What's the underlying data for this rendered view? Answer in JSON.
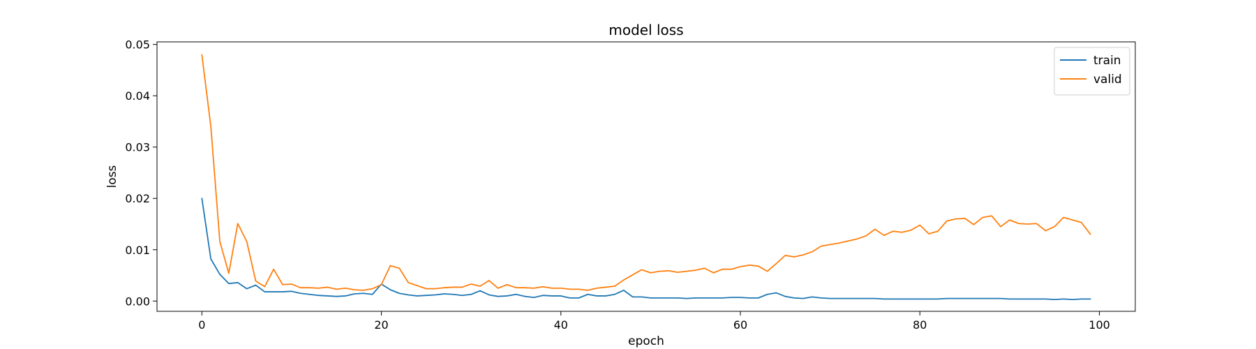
{
  "chart_data": {
    "type": "line",
    "title": "model loss",
    "xlabel": "epoch",
    "ylabel": "loss",
    "xlim": [
      -5,
      104
    ],
    "ylim": [
      -0.002,
      0.0505
    ],
    "xticks": [
      0,
      20,
      40,
      60,
      80,
      100
    ],
    "xtick_labels": [
      "0",
      "20",
      "40",
      "60",
      "80",
      "100"
    ],
    "yticks": [
      0.0,
      0.01,
      0.02,
      0.03,
      0.04,
      0.05
    ],
    "ytick_labels": [
      "0.00",
      "0.01",
      "0.02",
      "0.03",
      "0.04",
      "0.05"
    ],
    "grid": false,
    "legend_position": "top-right",
    "series": [
      {
        "name": "train",
        "color": "#1f77b4",
        "x": [
          0,
          1,
          2,
          3,
          4,
          5,
          6,
          7,
          8,
          9,
          10,
          11,
          12,
          13,
          14,
          15,
          16,
          17,
          18,
          19,
          20,
          21,
          22,
          23,
          24,
          25,
          26,
          27,
          28,
          29,
          30,
          31,
          32,
          33,
          34,
          35,
          36,
          37,
          38,
          39,
          40,
          41,
          42,
          43,
          44,
          45,
          46,
          47,
          48,
          49,
          50,
          51,
          52,
          53,
          54,
          55,
          56,
          57,
          58,
          59,
          60,
          61,
          62,
          63,
          64,
          65,
          66,
          67,
          68,
          69,
          70,
          71,
          72,
          73,
          74,
          75,
          76,
          77,
          78,
          79,
          80,
          81,
          82,
          83,
          84,
          85,
          86,
          87,
          88,
          89,
          90,
          91,
          92,
          93,
          94,
          95,
          96,
          97,
          98,
          99
        ],
        "values": [
          0.02,
          0.0082,
          0.0052,
          0.0034,
          0.0036,
          0.0024,
          0.0031,
          0.0018,
          0.0018,
          0.0018,
          0.0019,
          0.0015,
          0.0013,
          0.0011,
          0.001,
          0.0009,
          0.001,
          0.0014,
          0.0015,
          0.0013,
          0.0033,
          0.0022,
          0.0015,
          0.0012,
          0.001,
          0.0011,
          0.0012,
          0.0014,
          0.0013,
          0.0011,
          0.0013,
          0.002,
          0.0012,
          0.0009,
          0.001,
          0.0013,
          0.0009,
          0.0007,
          0.0011,
          0.001,
          0.001,
          0.0006,
          0.0006,
          0.0013,
          0.001,
          0.001,
          0.0013,
          0.0021,
          0.0008,
          0.0008,
          0.0006,
          0.0006,
          0.0006,
          0.0006,
          0.0005,
          0.0006,
          0.0006,
          0.0006,
          0.0006,
          0.0007,
          0.0007,
          0.0006,
          0.0006,
          0.0013,
          0.0016,
          0.0009,
          0.0006,
          0.0005,
          0.0008,
          0.0006,
          0.0005,
          0.0005,
          0.0005,
          0.0005,
          0.0005,
          0.0005,
          0.0004,
          0.0004,
          0.0004,
          0.0004,
          0.0004,
          0.0004,
          0.0004,
          0.0005,
          0.0005,
          0.0005,
          0.0005,
          0.0005,
          0.0005,
          0.0005,
          0.0004,
          0.0004,
          0.0004,
          0.0004,
          0.0004,
          0.0003,
          0.0004,
          0.0003,
          0.0004,
          0.0004
        ]
      },
      {
        "name": "valid",
        "color": "#ff7f0e",
        "x": [
          0,
          1,
          2,
          3,
          4,
          5,
          6,
          7,
          8,
          9,
          10,
          11,
          12,
          13,
          14,
          15,
          16,
          17,
          18,
          19,
          20,
          21,
          22,
          23,
          24,
          25,
          26,
          27,
          28,
          29,
          30,
          31,
          32,
          33,
          34,
          35,
          36,
          37,
          38,
          39,
          40,
          41,
          42,
          43,
          44,
          45,
          46,
          47,
          48,
          49,
          50,
          51,
          52,
          53,
          54,
          55,
          56,
          57,
          58,
          59,
          60,
          61,
          62,
          63,
          64,
          65,
          66,
          67,
          68,
          69,
          70,
          71,
          72,
          73,
          74,
          75,
          76,
          77,
          78,
          79,
          80,
          81,
          82,
          83,
          84,
          85,
          86,
          87,
          88,
          89,
          90,
          91,
          92,
          93,
          94,
          95,
          96,
          97,
          98,
          99
        ],
        "values": [
          0.048,
          0.034,
          0.0116,
          0.0054,
          0.0151,
          0.0116,
          0.0039,
          0.0028,
          0.0062,
          0.0032,
          0.0033,
          0.0026,
          0.0026,
          0.0025,
          0.0027,
          0.0023,
          0.0025,
          0.0022,
          0.0021,
          0.0024,
          0.0032,
          0.0069,
          0.0064,
          0.0036,
          0.003,
          0.0024,
          0.0024,
          0.0026,
          0.0027,
          0.0027,
          0.0033,
          0.0029,
          0.004,
          0.0025,
          0.0032,
          0.0026,
          0.0026,
          0.0025,
          0.0028,
          0.0025,
          0.0025,
          0.0023,
          0.0023,
          0.0021,
          0.0025,
          0.0027,
          0.0029,
          0.0041,
          0.0051,
          0.0061,
          0.0055,
          0.0058,
          0.0059,
          0.0056,
          0.0058,
          0.006,
          0.0064,
          0.0055,
          0.0062,
          0.0062,
          0.0067,
          0.007,
          0.0068,
          0.0058,
          0.0073,
          0.0089,
          0.0086,
          0.009,
          0.0096,
          0.0107,
          0.011,
          0.0113,
          0.0117,
          0.0121,
          0.0127,
          0.014,
          0.0128,
          0.0136,
          0.0134,
          0.0138,
          0.0148,
          0.0131,
          0.0136,
          0.0156,
          0.016,
          0.0161,
          0.0149,
          0.0163,
          0.0166,
          0.0145,
          0.0158,
          0.0151,
          0.015,
          0.0151,
          0.0137,
          0.0145,
          0.0163,
          0.0158,
          0.0153,
          0.013
        ]
      }
    ]
  }
}
